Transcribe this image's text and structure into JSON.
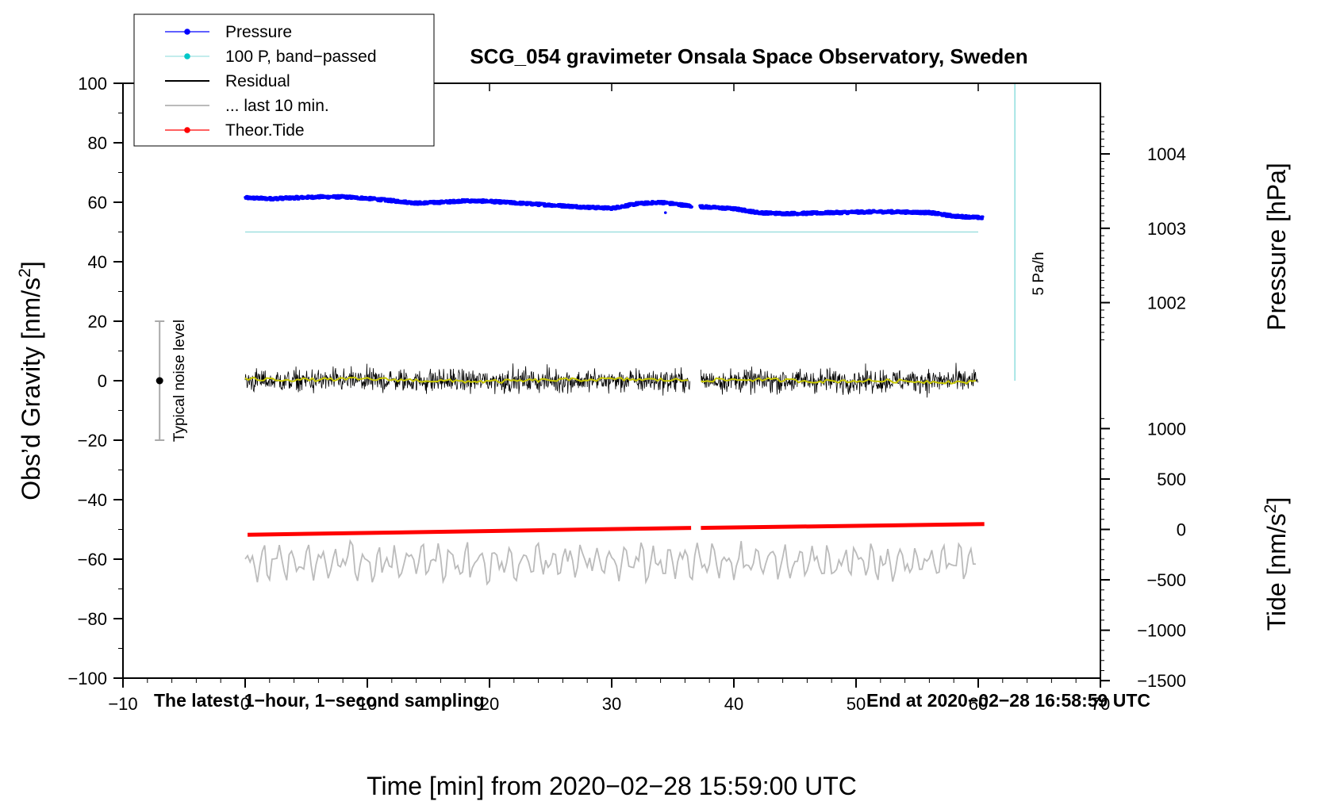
{
  "chart_data": {
    "type": "line",
    "title": "SCG_054 gravimeter Onsala Space Observatory, Sweden",
    "xlabel": "Time [min] from 2020−02−28 15:59:00 UTC",
    "ylabel_left_main": "Obs’d Gravity [nm/s",
    "ylabel_left_sup": "2",
    "ylabel_left_end": "]",
    "ylabel_right_pressure": "Pressure [hPa]",
    "ylabel_right_tide_main": "Tide [nm/s",
    "ylabel_right_tide_sup": "2",
    "ylabel_right_tide_end": "]",
    "xlim": [
      -10,
      70
    ],
    "ylim": [
      -100,
      100
    ],
    "x_ticks": [
      -10,
      0,
      10,
      20,
      30,
      40,
      50,
      60,
      70
    ],
    "x_tick_labels": [
      "−10",
      "0",
      "10",
      "20",
      "30",
      "40",
      "50",
      "60",
      "70"
    ],
    "y_ticks": [
      100,
      80,
      60,
      40,
      20,
      0,
      -20,
      -40,
      -60,
      -80,
      -100
    ],
    "y_tick_labels": [
      "100",
      "80",
      "60",
      "40",
      "20",
      "0",
      "−20",
      "−40",
      "−60",
      "−80",
      "−100"
    ],
    "pressure_ticks": [
      1004,
      1003,
      1002
    ],
    "pressure_tick_labels": [
      "1004",
      "1003",
      "1002"
    ],
    "pressure_scale": {
      "value_at_y60": 1003.35,
      "hpa_per_unit": 0.04
    },
    "tide_ticks": [
      1000,
      500,
      0,
      -500,
      -1000,
      -1500
    ],
    "tide_tick_labels": [
      "1000",
      "500",
      "0",
      "−500",
      "−1000",
      "−1500"
    ],
    "tide_scale": {
      "y_at_0": -50,
      "units_per_unit": 29.5
    },
    "legend": [
      {
        "label": "Pressure",
        "color": "#0000ff",
        "style": "line-dot"
      },
      {
        "label": "100 P, band−passed",
        "color": "#00c8c8",
        "style": "line-dot"
      },
      {
        "label": "Residual",
        "color": "#000000",
        "style": "line"
      },
      {
        "label": "... last 10 min.",
        "color": "#bbbbbb",
        "style": "line"
      },
      {
        "label": "Theor.Tide",
        "color": "#ff0000",
        "style": "line-dot"
      }
    ],
    "gap": [
      36.5,
      37.2
    ],
    "series": [
      {
        "name": "Pressure",
        "color": "#0000ff",
        "x": [
          0,
          2,
          4,
          6,
          8,
          10,
          12,
          14,
          16,
          18,
          20,
          22,
          24,
          26,
          28,
          30,
          32,
          34,
          36.3,
          37.3,
          40,
          42,
          44,
          46,
          48,
          50,
          52,
          54,
          56,
          58,
          60.3
        ],
        "y": [
          61.5,
          61.2,
          61.5,
          61.8,
          61.8,
          61.3,
          60.5,
          59.7,
          60.0,
          60.5,
          60.3,
          59.8,
          59.3,
          58.8,
          58.3,
          58.0,
          59.5,
          60.0,
          58.8,
          58.5,
          57.8,
          56.5,
          56.2,
          56.3,
          56.5,
          56.7,
          56.8,
          56.7,
          56.5,
          55.3,
          54.8
        ]
      },
      {
        "name": "100 P, band−passed",
        "color": "#00c8c8",
        "x": [
          0,
          60
        ],
        "y": [
          50,
          50
        ]
      },
      {
        "name": "Residual (smoothed)",
        "color": "#c8c800",
        "x": [
          0,
          5,
          10,
          15,
          20,
          25,
          30,
          35.5,
          37.5,
          42,
          47,
          52,
          57,
          60
        ],
        "y": [
          0.5,
          0.3,
          0.6,
          0.0,
          -0.3,
          0.2,
          0.5,
          0.2,
          0.2,
          0.4,
          -0.2,
          0.0,
          -0.4,
          -0.5
        ]
      },
      {
        "name": "Theor.Tide",
        "color": "#ff0000",
        "x": [
          0.2,
          36.5,
          37.3,
          60.5
        ],
        "y": [
          -51.8,
          -49.5,
          -49.5,
          -48.2
        ]
      }
    ],
    "residual_range": [
      -14,
      14
    ],
    "last10_center": -61,
    "last10_range": [
      -73,
      -52
    ],
    "noise_bar": {
      "x": -7,
      "center": 0,
      "low": -20,
      "high": 20,
      "label": "Typical noise level"
    },
    "rate_bar": {
      "x": 63,
      "y_low": 0,
      "y_high": 100,
      "label": "5 Pa/h"
    },
    "bottom_left_text": "The latest 1−hour, 1−second sampling",
    "bottom_right_text": "End at 2020−02−28 16:58:59 UTC"
  }
}
